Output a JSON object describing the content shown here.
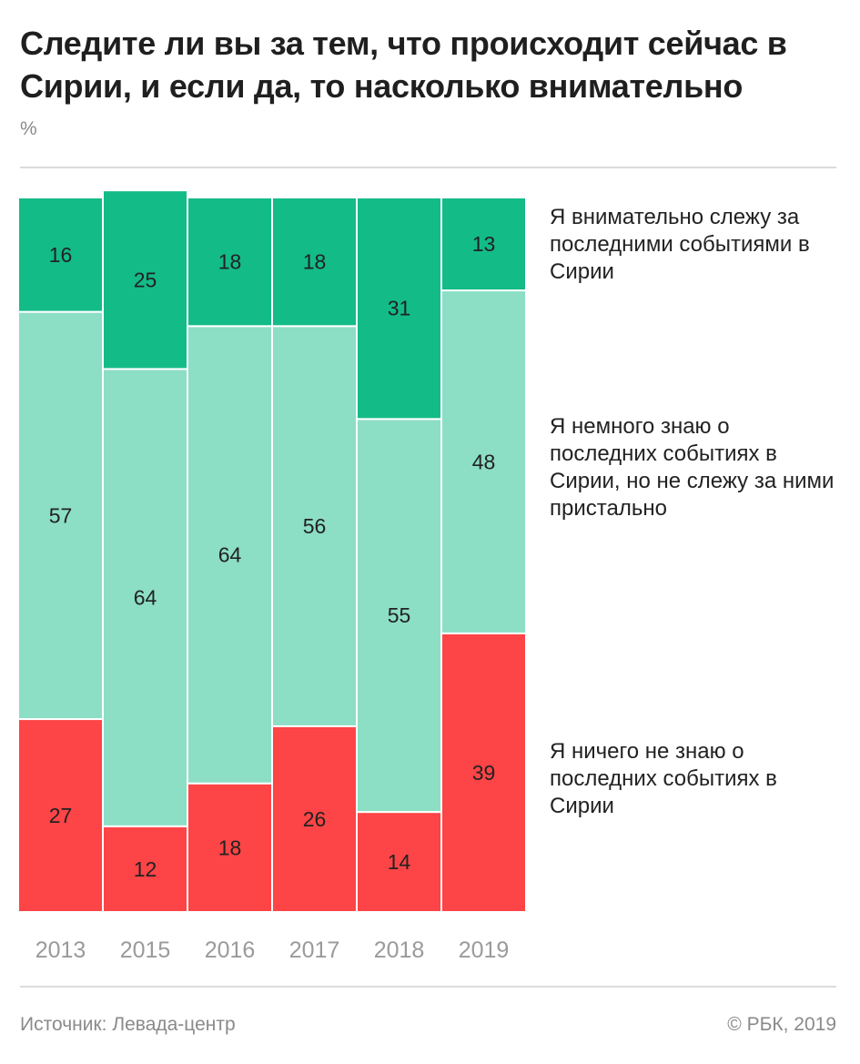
{
  "header": {
    "title": "Следите ли вы за тем, что происходит сейчас в Сирии, и если да, то насколько внимательно",
    "unit": "%"
  },
  "colors": {
    "attentive": "#13bb87",
    "somewhat": "#8cdec5",
    "nothing": "#fd4446",
    "year_label": "#9a9a9a",
    "value_label": "#222222"
  },
  "chart_data": {
    "type": "bar",
    "stacked": true,
    "title": "Следите ли вы за тем, что происходит сейчас в Сирии, и если да, то насколько внимательно",
    "xlabel": "",
    "ylabel": "%",
    "ylim": [
      0,
      100
    ],
    "grid": false,
    "legend_position": "right",
    "categories": [
      "2013",
      "2015",
      "2016",
      "2017",
      "2018",
      "2019"
    ],
    "series": [
      {
        "name": "Я ничего не знаю о последних событиях в Сирии",
        "color": "#fd4446",
        "values": [
          27,
          12,
          18,
          26,
          14,
          39
        ]
      },
      {
        "name": "Я немного знаю о последних событиях в Сирии, но не слежу за ними пристально",
        "color": "#8cdec5",
        "values": [
          57,
          64,
          64,
          56,
          55,
          48
        ]
      },
      {
        "name": "Я внимательно слежу за последними событиями в Сирии",
        "color": "#13bb87",
        "values": [
          16,
          25,
          18,
          18,
          31,
          13
        ]
      }
    ]
  },
  "legend": {
    "attentive": "Я внимательно слежу за последними событиями в Сирии",
    "somewhat": "Я немного знаю о последних событиях в Сирии, но не слежу за ними пристально",
    "nothing": "Я ничего не знаю о последних событиях в Сирии"
  },
  "footer": {
    "source": "Источник: Левада-центр",
    "copyright": "© РБК, 2019"
  }
}
